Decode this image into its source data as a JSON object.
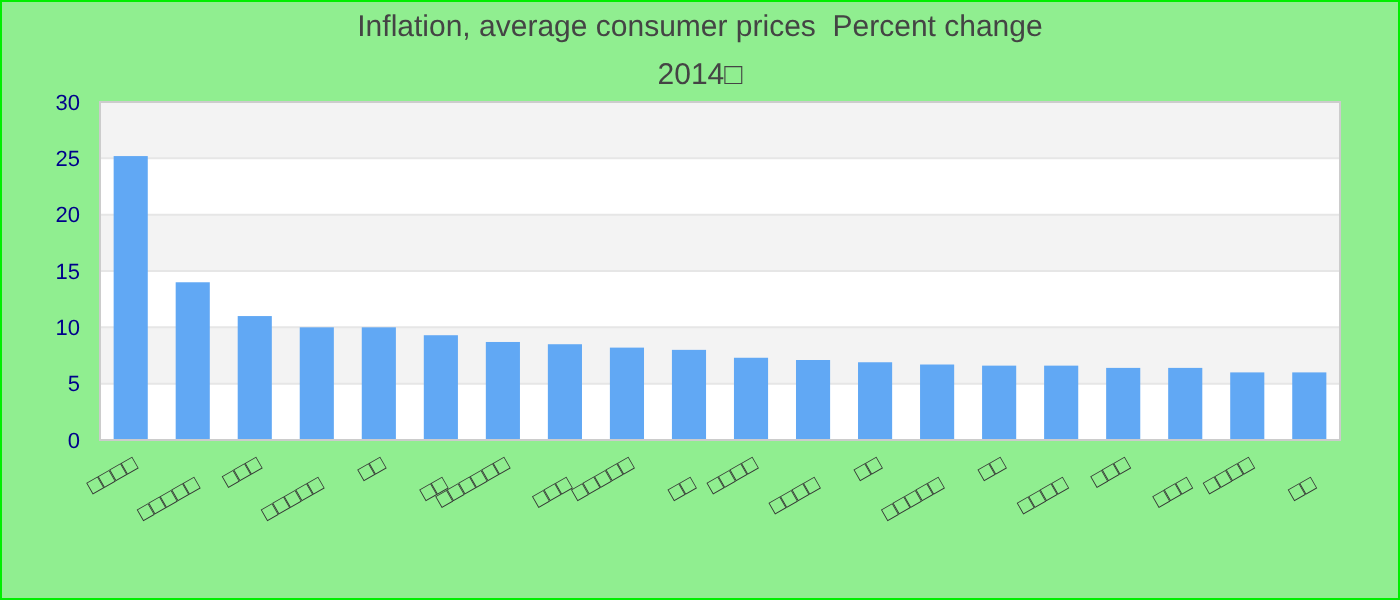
{
  "chart_data": {
    "type": "bar",
    "title": "Inflation, average consumer prices  Percent change",
    "subtitle": "2014□",
    "categories": [
      "□□□□",
      "□□□□□",
      "□□□",
      "□□□□□",
      "□□",
      "□□",
      "□□□□□□",
      "□□□",
      "□□□□□",
      "□□",
      "□□□□",
      "□□□□",
      "□□",
      "□□□□□",
      "□□",
      "□□□□",
      "□□□",
      "□□□",
      "□□□□",
      "□□"
    ],
    "values": [
      25.2,
      14.0,
      11.0,
      10.0,
      10.0,
      9.3,
      8.7,
      8.5,
      8.2,
      8.0,
      7.3,
      7.1,
      6.9,
      6.7,
      6.6,
      6.6,
      6.4,
      6.4,
      6.0,
      6.0
    ],
    "color": "#61a8f4",
    "ylim": [
      0,
      30
    ],
    "yticks": [
      0,
      5,
      10,
      15,
      20,
      25,
      30
    ],
    "grid": "y"
  }
}
